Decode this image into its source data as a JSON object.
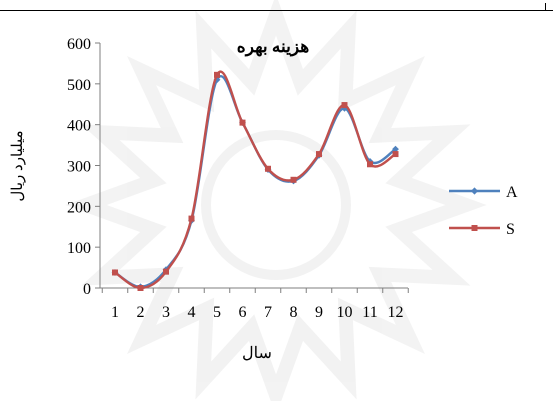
{
  "chart_data": {
    "type": "line",
    "title": "هزینه بهره",
    "xlabel": "سال",
    "ylabel": "میلیارد ریال",
    "categories": [
      "1",
      "2",
      "3",
      "4",
      "5",
      "6",
      "7",
      "8",
      "9",
      "10",
      "11",
      "12"
    ],
    "ylim": [
      0,
      600
    ],
    "yticks": [
      "0",
      "100",
      "200",
      "300",
      "400",
      "500",
      "600"
    ],
    "grid": false,
    "legend_position": "right",
    "series": [
      {
        "name": "A",
        "color": "#4f81bd",
        "marker": "diamond",
        "values": [
          38,
          3,
          45,
          165,
          510,
          405,
          290,
          262,
          325,
          440,
          310,
          340
        ]
      },
      {
        "name": "S",
        "color": "#c0504d",
        "marker": "square",
        "values": [
          38,
          0,
          40,
          170,
          522,
          405,
          292,
          265,
          328,
          448,
          303,
          328
        ]
      }
    ]
  }
}
